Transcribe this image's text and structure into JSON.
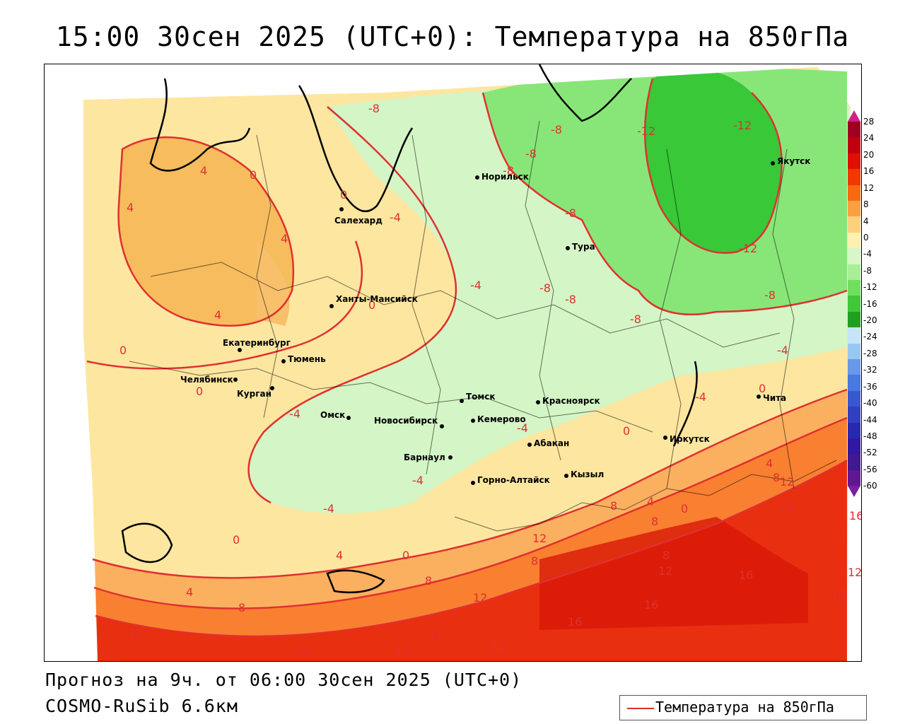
{
  "title": "15:00 30сен 2025 (UTC+0): Температура на 850гПа",
  "footer": {
    "forecast": "Прогноз на 9ч. от 06:00 30сен 2025 (UTC+0)",
    "model": "COSMO-RuSib 6.6км"
  },
  "legend": {
    "label": "Температура на 850гПа",
    "line_color": "#e03030"
  },
  "colorbar": {
    "ticks": [
      "28",
      "24",
      "20",
      "16",
      "12",
      "8",
      "4",
      "0",
      "-4",
      "-8",
      "-12",
      "-16",
      "-20",
      "-24",
      "-28",
      "-32",
      "-36",
      "-40",
      "-44",
      "-48",
      "-52",
      "-56",
      "-60"
    ],
    "colors": [
      "#a00020",
      "#c00010",
      "#e01000",
      "#f03800",
      "#f86a10",
      "#fba040",
      "#fdd080",
      "#fef0b0",
      "#d8f7c8",
      "#a8ef98",
      "#70df60",
      "#40c838",
      "#20a020",
      "#c8e4f8",
      "#98c8f0",
      "#6898e8",
      "#4878e0",
      "#3858d0",
      "#3040c0",
      "#2828b0",
      "#3018a0",
      "#401890",
      "#601890"
    ]
  },
  "isolines": [
    "-12",
    "-12",
    "-12",
    "-8",
    "-8",
    "-8",
    "-8",
    "-8",
    "-8",
    "-8",
    "-8",
    "-8",
    "-4",
    "-4",
    "-4",
    "-4",
    "-4",
    "-4",
    "-4",
    "-4",
    "0",
    "0",
    "0",
    "0",
    "0",
    "0",
    "0",
    "0",
    "0",
    "0",
    "4",
    "4",
    "4",
    "4",
    "4",
    "4",
    "4",
    "4",
    "8",
    "8",
    "8",
    "8",
    "8",
    "8",
    "8",
    "12",
    "12",
    "12",
    "12",
    "12",
    "12",
    "12",
    "12",
    "12",
    "12",
    "16",
    "16",
    "16",
    "16",
    "16",
    "16",
    "16",
    "16"
  ],
  "cities": [
    "Салехард",
    "Норильск",
    "Тура",
    "Якутск",
    "Ханты-Мансийск",
    "Екатеринбург",
    "Тюмень",
    "Челябинск",
    "Курган",
    "Омск",
    "Новосибирск",
    "Томск",
    "Кемерово",
    "Красноярск",
    "Абакан",
    "Барнаул",
    "Горно-Алтайск",
    "Кызыл",
    "Иркутск",
    "Чита"
  ]
}
